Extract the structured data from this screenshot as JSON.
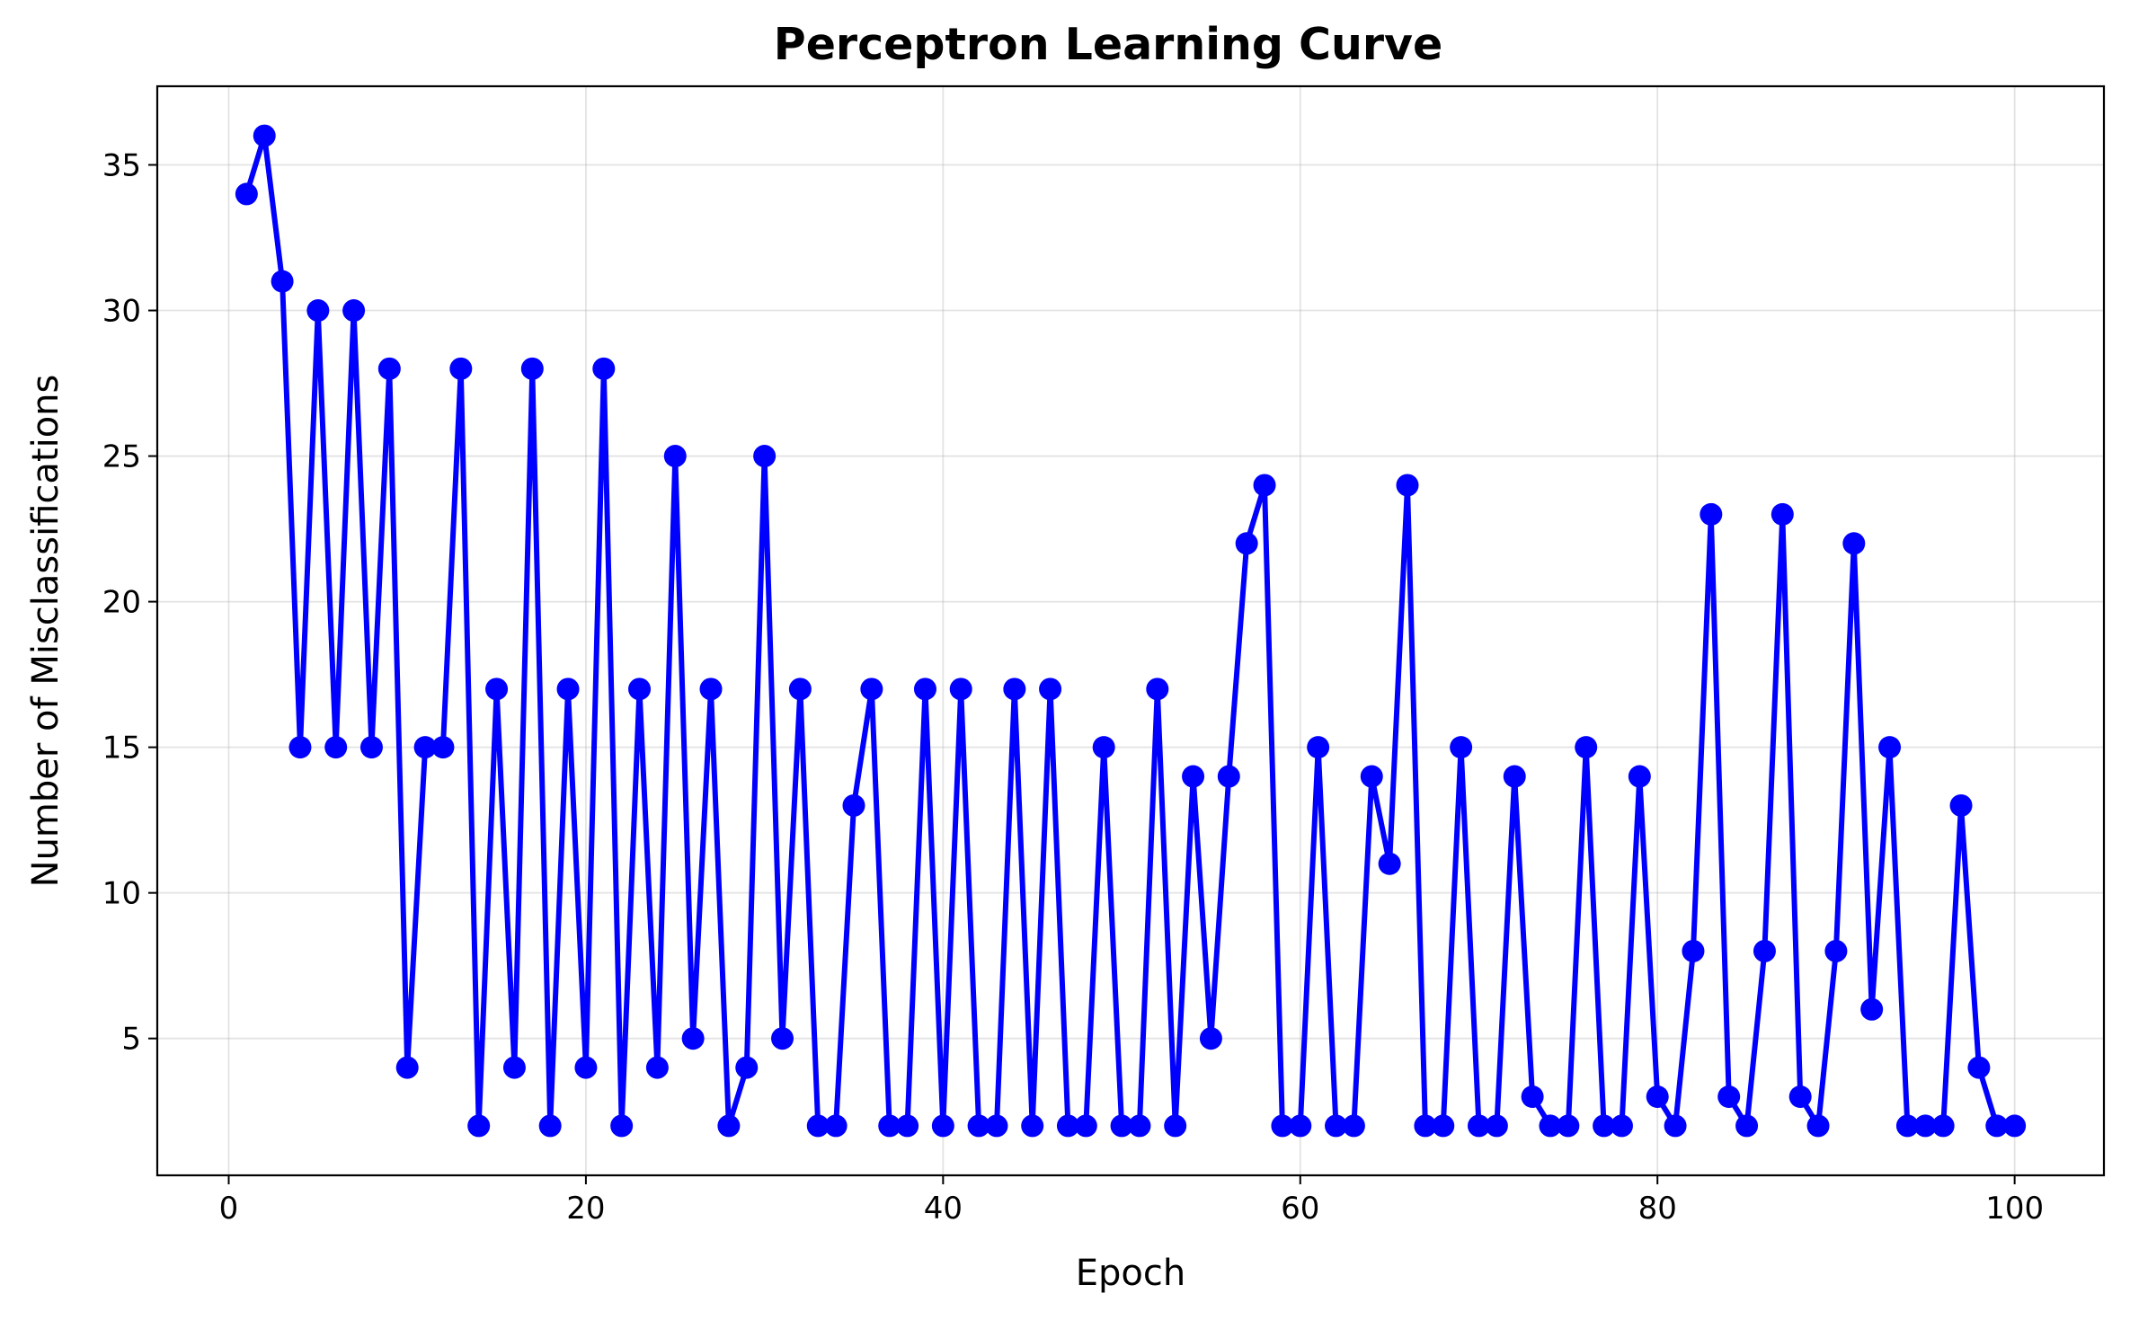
{
  "chart_data": {
    "type": "line",
    "title": "Perceptron Learning Curve",
    "xlabel": "Epoch",
    "ylabel": "Number of Misclassifications",
    "xlim": [
      -4,
      105
    ],
    "ylim": [
      0.3,
      37.7
    ],
    "xticks": [
      0,
      20,
      40,
      60,
      80,
      100
    ],
    "yticks": [
      5,
      10,
      15,
      20,
      25,
      30,
      35
    ],
    "grid": true,
    "marker": "circle",
    "color": "#0000ff",
    "series": [
      {
        "x": [
          1,
          2,
          3,
          4,
          5,
          6,
          7,
          8,
          9,
          10,
          11,
          12,
          13,
          14,
          15,
          16,
          17,
          18,
          19,
          20,
          21,
          22,
          23,
          24,
          25,
          26,
          27,
          28,
          29,
          30,
          31,
          32,
          33,
          34,
          35,
          36,
          37,
          38,
          39,
          40,
          41,
          42,
          43,
          44,
          45,
          46,
          47,
          48,
          49,
          50,
          51,
          52,
          53,
          54,
          55,
          56,
          57,
          58,
          59,
          60,
          61,
          62,
          63,
          64,
          65,
          66,
          67,
          68,
          69,
          70,
          71,
          72,
          73,
          74,
          75,
          76,
          77,
          78,
          79,
          80,
          81,
          82,
          83,
          84,
          85,
          86,
          87,
          88,
          89,
          90,
          91,
          92,
          93,
          94,
          95,
          96,
          97,
          98,
          99,
          100
        ],
        "values": [
          34,
          36,
          31,
          15,
          30,
          15,
          30,
          15,
          28,
          4,
          15,
          15,
          28,
          2,
          17,
          4,
          28,
          2,
          17,
          4,
          28,
          2,
          17,
          4,
          25,
          5,
          17,
          2,
          4,
          25,
          5,
          17,
          2,
          2,
          13,
          17,
          2,
          2,
          17,
          2,
          17,
          2,
          2,
          17,
          2,
          17,
          2,
          2,
          15,
          2,
          2,
          17,
          2,
          14,
          5,
          14,
          22,
          24,
          2,
          2,
          15,
          2,
          2,
          14,
          11,
          24,
          2,
          2,
          15,
          2,
          2,
          14,
          3,
          2,
          2,
          15,
          2,
          2,
          14,
          3,
          2,
          8,
          23,
          3,
          2,
          8,
          23,
          3,
          2,
          8,
          22,
          6,
          15,
          2,
          2,
          2,
          13,
          4,
          2,
          2
        ]
      }
    ]
  }
}
